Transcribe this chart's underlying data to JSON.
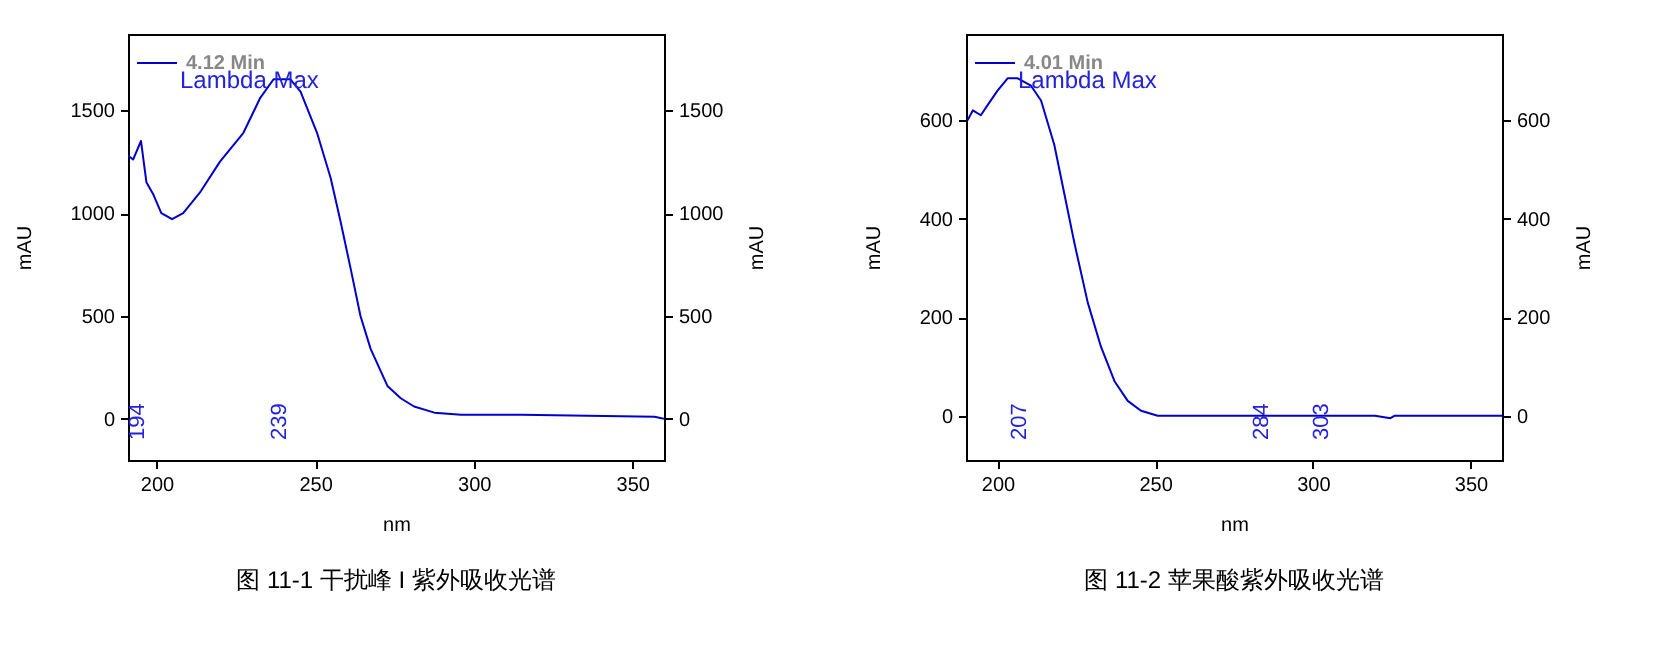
{
  "chart_data": [
    {
      "type": "line",
      "title": "图 11-1  干扰峰 I 紫外吸收光谱",
      "xlabel": "nm",
      "ylabel": "mAU",
      "y2label": "mAU",
      "x": [
        191,
        192.6,
        195.1,
        196.8,
        199,
        201.5,
        204.9,
        208.4,
        213.7,
        220,
        227.4,
        232.7,
        236.9,
        242.2,
        245.4,
        250.6,
        254.9,
        258,
        261.2,
        264.3,
        267.5,
        272.8,
        277,
        281.2,
        287.6,
        296,
        315,
        357,
        360
      ],
      "series": [
        {
          "name": "4.12 Min",
          "color": "#0000cc",
          "values": [
            1280,
            1260,
            1350,
            1150,
            1090,
            1000,
            970,
            1000,
            1100,
            1250,
            1390,
            1560,
            1650,
            1650,
            1590,
            1390,
            1170,
            960,
            730,
            500,
            340,
            160,
            100,
            60,
            30,
            20,
            20,
            10,
            0
          ]
        }
      ],
      "annotations": [
        "Lambda Max",
        "194",
        "239"
      ],
      "xlim": [
        191,
        360
      ],
      "xticks": [
        200,
        250,
        300,
        350
      ],
      "ylim": [
        -200,
        1870
      ],
      "yticks": [
        0,
        500,
        1000,
        1500
      ],
      "y2lim": [
        -200,
        1870
      ],
      "y2ticks": [
        0,
        500,
        1000,
        1500
      ],
      "grid": false,
      "legend": "top left",
      "marker": "none",
      "line_style": "solid"
    },
    {
      "type": "line",
      "title": "图  11-2  苹果酸紫外吸收光谱",
      "xlabel": "nm",
      "ylabel": "mAU",
      "y2label": "mAU",
      "x": [
        190.5,
        192.2,
        194.7,
        196.8,
        200,
        203.2,
        206.4,
        210.6,
        213.8,
        218,
        221.2,
        224.4,
        228.6,
        232.8,
        237.1,
        241.3,
        245.5,
        250.8,
        319.7,
        324.6,
        326,
        360
      ],
      "series": [
        {
          "name": "4.01 Min",
          "color": "#0000cc",
          "values": [
            600,
            620,
            610,
            630,
            660,
            685,
            685,
            670,
            640,
            550,
            450,
            350,
            230,
            140,
            70,
            30,
            10,
            0,
            0,
            -5,
            0,
            0
          ]
        }
      ],
      "annotations": [
        "Lambda Max",
        "207",
        "284",
        "303"
      ],
      "xlim": [
        190,
        360
      ],
      "xticks": [
        200,
        250,
        300,
        350
      ],
      "ylim": [
        -90,
        775
      ],
      "yticks": [
        0,
        200,
        400,
        600
      ],
      "y2lim": [
        -90,
        775
      ],
      "y2ticks": [
        0,
        200,
        400,
        600
      ],
      "grid": false,
      "legend": "top left",
      "marker": "none",
      "line_style": "solid"
    }
  ]
}
